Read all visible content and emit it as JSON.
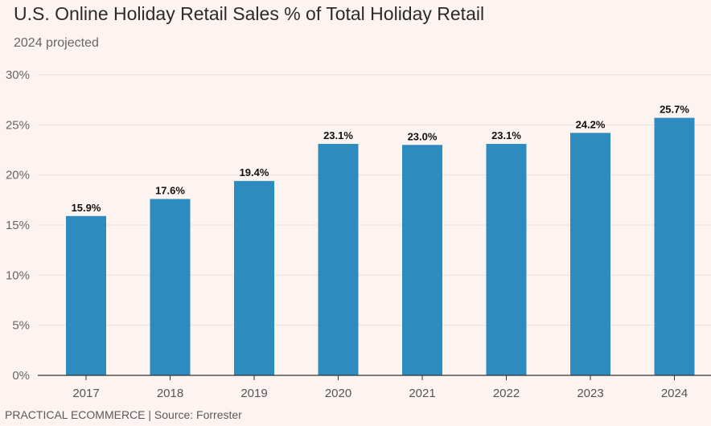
{
  "header": {
    "title": "U.S. Online Holiday Retail Sales % of Total Holiday Retail",
    "subtitle": "2024 projected"
  },
  "footer": {
    "credit": "PRACTICAL ECOMMERCE | Source: Forrester"
  },
  "colors": {
    "bar": "#2e8bc0",
    "background": "#fdf3f1",
    "gridline": "#e9e2e0",
    "axis": "#333333"
  },
  "chart_data": {
    "type": "bar",
    "title": "U.S. Online Holiday Retail Sales % of Total Holiday Retail",
    "subtitle": "2024 projected",
    "xlabel": "",
    "ylabel": "",
    "categories": [
      "2017",
      "2018",
      "2019",
      "2020",
      "2021",
      "2022",
      "2023",
      "2024"
    ],
    "values": [
      15.9,
      17.6,
      19.4,
      23.1,
      23.0,
      23.1,
      24.2,
      25.7
    ],
    "value_labels": [
      "15.9%",
      "17.6%",
      "19.4%",
      "23.1%",
      "23.0%",
      "23.1%",
      "24.2%",
      "25.7%"
    ],
    "ylim": [
      0,
      30
    ],
    "yticks": [
      0,
      5,
      10,
      15,
      20,
      25,
      30
    ],
    "ytick_labels": [
      "0%",
      "5%",
      "10%",
      "15%",
      "20%",
      "25%",
      "30%"
    ],
    "grid": true,
    "legend": "none"
  }
}
